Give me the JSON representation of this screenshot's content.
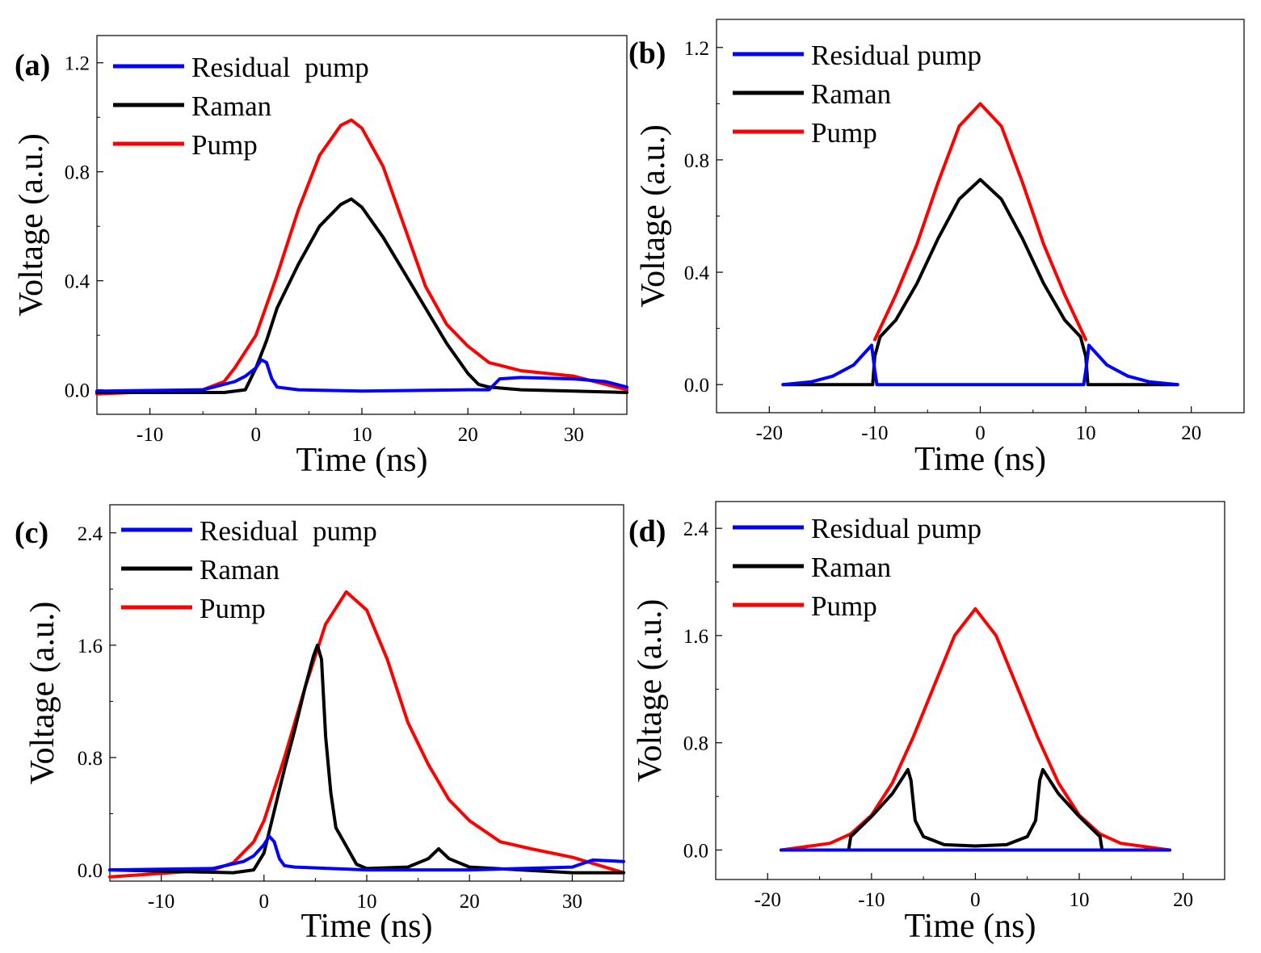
{
  "chart_data": [
    {
      "panel": "(a)",
      "type": "line",
      "xlabel": "Time (ns)",
      "ylabel": "Voltage (a.u.)",
      "xlim": [
        -15,
        35
      ],
      "ylim": [
        -0.09,
        1.3
      ],
      "xticks": [
        -10,
        0,
        10,
        20,
        30
      ],
      "xtick_labels": [
        "-10",
        "0",
        "10",
        "20",
        "30"
      ],
      "yticks": [
        0.0,
        0.4,
        0.8,
        1.2
      ],
      "ytick_labels": [
        "0.0",
        "0.4",
        "0.8",
        "1.2"
      ],
      "legend": "top-left",
      "series": [
        {
          "name": "Residual  pump",
          "color": "#0000ff",
          "x": [
            -15,
            -5,
            -2,
            -1,
            0,
            0.5,
            1,
            1.5,
            2,
            4,
            10,
            20,
            22,
            23,
            25,
            30,
            33,
            35
          ],
          "y": [
            -0.005,
            0.0,
            0.03,
            0.05,
            0.08,
            0.11,
            0.1,
            0.04,
            0.01,
            0.0,
            -0.005,
            0.0,
            0.0,
            0.04,
            0.045,
            0.04,
            0.03,
            0.01
          ]
        },
        {
          "name": "Raman",
          "color": "#000000",
          "x": [
            -15,
            -3,
            -1,
            0,
            1,
            2,
            4,
            6,
            8,
            9,
            10,
            12,
            14,
            16,
            18,
            20,
            21,
            22,
            25,
            30,
            35
          ],
          "y": [
            -0.01,
            -0.01,
            0.0,
            0.08,
            0.18,
            0.3,
            0.46,
            0.6,
            0.68,
            0.7,
            0.67,
            0.56,
            0.43,
            0.3,
            0.17,
            0.06,
            0.02,
            0.01,
            0.0,
            -0.005,
            -0.01
          ]
        },
        {
          "name": "Pump",
          "color": "#ff0000",
          "x": [
            -15,
            -5,
            -3,
            -2,
            0,
            2,
            4,
            6,
            8,
            9,
            10,
            12,
            14,
            16,
            18,
            20,
            22,
            25,
            30,
            35
          ],
          "y": [
            -0.015,
            0.0,
            0.03,
            0.08,
            0.2,
            0.42,
            0.66,
            0.86,
            0.97,
            0.99,
            0.96,
            0.82,
            0.6,
            0.38,
            0.24,
            0.16,
            0.1,
            0.07,
            0.05,
            0.0
          ]
        }
      ]
    },
    {
      "panel": "(b)",
      "type": "line",
      "xlabel": "Time (ns)",
      "ylabel": "Voltage (a.u.)",
      "xlim": [
        -25,
        25
      ],
      "ylim": [
        -0.1,
        1.3
      ],
      "xticks": [
        -20,
        -10,
        0,
        10,
        20
      ],
      "xtick_labels": [
        "-20",
        "-10",
        "0",
        "10",
        "20"
      ],
      "yticks": [
        0.0,
        0.4,
        0.8,
        1.2
      ],
      "ytick_labels": [
        "0.0",
        "0.4",
        "0.8",
        "1.2"
      ],
      "legend": "top-left",
      "series": [
        {
          "name": "Residual pump",
          "color": "#0000ff",
          "x": [
            -18.7,
            -16,
            -14,
            -12,
            -10.3,
            -10,
            -9.8,
            9.8,
            10,
            10.3,
            12,
            14,
            16,
            18.7
          ],
          "y": [
            0.0,
            0.01,
            0.03,
            0.07,
            0.14,
            0.05,
            0.0,
            0.0,
            0.05,
            0.14,
            0.07,
            0.03,
            0.01,
            0.0
          ]
        },
        {
          "name": "Raman",
          "color": "#000000",
          "x": [
            -18.7,
            -10.2,
            -10,
            -9.5,
            -8,
            -6,
            -4,
            -2,
            0,
            2,
            4,
            6,
            8,
            9.5,
            10,
            10.2,
            18.7
          ],
          "y": [
            0.0,
            0.0,
            0.1,
            0.17,
            0.23,
            0.36,
            0.52,
            0.66,
            0.73,
            0.66,
            0.52,
            0.36,
            0.23,
            0.17,
            0.1,
            0.0,
            0.0
          ]
        },
        {
          "name": "Pump",
          "color": "#ff0000",
          "x": [
            -10,
            -8,
            -6,
            -4,
            -2,
            0,
            2,
            4,
            6,
            8,
            10
          ],
          "y": [
            0.16,
            0.32,
            0.5,
            0.72,
            0.92,
            1.0,
            0.92,
            0.72,
            0.5,
            0.32,
            0.16
          ]
        }
      ]
    },
    {
      "panel": "(c)",
      "type": "line",
      "xlabel": "Time (ns)",
      "ylabel": "Voltage (a.u.)",
      "xlim": [
        -15,
        35
      ],
      "ylim": [
        -0.08,
        2.6
      ],
      "xticks": [
        -10,
        0,
        10,
        20,
        30
      ],
      "xtick_labels": [
        "-10",
        "0",
        "10",
        "20",
        "30"
      ],
      "yticks": [
        0.0,
        0.8,
        1.6,
        2.4
      ],
      "ytick_labels": [
        "0.0",
        "0.8",
        "1.6",
        "2.4"
      ],
      "legend": "top-left",
      "series": [
        {
          "name": "Residual  pump",
          "color": "#0000ff",
          "x": [
            -15,
            -5,
            -2,
            -1,
            0,
            0.5,
            1,
            1.5,
            2,
            3,
            10,
            20,
            25,
            30,
            32,
            35
          ],
          "y": [
            0.0,
            0.01,
            0.06,
            0.1,
            0.18,
            0.24,
            0.2,
            0.08,
            0.03,
            0.02,
            0.0,
            0.0,
            0.01,
            0.02,
            0.07,
            0.06
          ]
        },
        {
          "name": "Raman",
          "color": "#000000",
          "x": [
            -15,
            -3,
            -1,
            0,
            1,
            2,
            3,
            4,
            4.8,
            5.2,
            5.6,
            6,
            6.5,
            7,
            8,
            9,
            10,
            14,
            16,
            17,
            18,
            20,
            25,
            30,
            35
          ],
          "y": [
            0.0,
            -0.02,
            0.0,
            0.12,
            0.42,
            0.72,
            1.0,
            1.3,
            1.52,
            1.6,
            1.5,
            0.95,
            0.55,
            0.3,
            0.17,
            0.04,
            0.01,
            0.02,
            0.08,
            0.15,
            0.08,
            0.02,
            0.0,
            -0.02,
            -0.02
          ]
        },
        {
          "name": "Pump",
          "color": "#ff0000",
          "x": [
            -15,
            -5,
            -3,
            -1,
            0,
            2,
            4,
            6,
            8,
            10,
            12,
            14,
            16,
            18,
            20,
            23,
            26,
            30,
            35
          ],
          "y": [
            -0.05,
            0.0,
            0.05,
            0.2,
            0.35,
            0.8,
            1.3,
            1.75,
            1.98,
            1.85,
            1.5,
            1.05,
            0.75,
            0.5,
            0.35,
            0.2,
            0.15,
            0.09,
            -0.02
          ]
        }
      ]
    },
    {
      "panel": "(d)",
      "type": "line",
      "xlabel": "Time (ns)",
      "ylabel": "Voltage (a.u.)",
      "xlim": [
        -25,
        24
      ],
      "ylim": [
        -0.22,
        2.6
      ],
      "xticks": [
        -20,
        -10,
        0,
        10,
        20
      ],
      "xtick_labels": [
        "-20",
        "-10",
        "0",
        "10",
        "20"
      ],
      "yticks": [
        0.0,
        0.8,
        1.6,
        2.4
      ],
      "ytick_labels": [
        "0.0",
        "0.8",
        "1.6",
        "2.4"
      ],
      "legend": "top-left",
      "series": [
        {
          "name": "Residual pump",
          "color": "#0000ff",
          "x": [
            -18.7,
            -12.3,
            -12,
            12,
            12.3,
            18.7
          ],
          "y": [
            0.0,
            0.0,
            0.0,
            0.0,
            0.0,
            0.0
          ]
        },
        {
          "name": "Raman",
          "color": "#000000",
          "x": [
            -18.7,
            -12.2,
            -12,
            -10,
            -8,
            -6.5,
            -6.2,
            -5.8,
            -5,
            -3,
            0,
            3,
            5,
            5.8,
            6.2,
            6.5,
            8,
            10,
            12,
            12.2,
            18.7
          ],
          "y": [
            0.0,
            0.0,
            0.1,
            0.25,
            0.42,
            0.6,
            0.52,
            0.22,
            0.1,
            0.04,
            0.03,
            0.04,
            0.1,
            0.22,
            0.52,
            0.6,
            0.42,
            0.25,
            0.1,
            0.0,
            0.0
          ]
        },
        {
          "name": "Pump",
          "color": "#ff0000",
          "x": [
            -18.7,
            -14,
            -12,
            -10,
            -8,
            -6,
            -4,
            -2,
            0,
            2,
            4,
            6,
            8,
            10,
            12,
            14,
            18.7
          ],
          "y": [
            0.0,
            0.05,
            0.12,
            0.26,
            0.5,
            0.84,
            1.22,
            1.6,
            1.8,
            1.6,
            1.22,
            0.84,
            0.5,
            0.26,
            0.12,
            0.05,
            0.0
          ]
        }
      ]
    }
  ]
}
